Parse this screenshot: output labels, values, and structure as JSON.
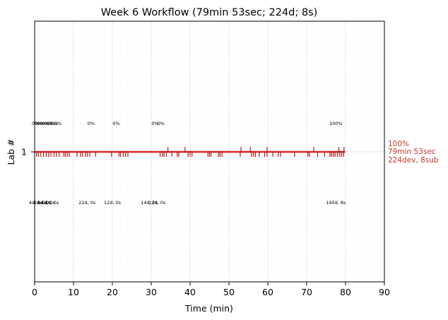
{
  "chart_data": {
    "type": "timeline",
    "title": "Week 6 Workflow (79min 53sec; 224d; 8s)",
    "xlabel": "Time (min)",
    "ylabel": "Lab #",
    "xlim": [
      0,
      90
    ],
    "xticks": [
      0,
      10,
      20,
      30,
      40,
      50,
      60,
      70,
      80,
      90
    ],
    "ytick_label": "1",
    "grid": "vertical dotted at major ticks, faint minor every 2 min",
    "colors": {
      "line": "#d62728",
      "tick": "#b71c1c",
      "label": "#c0392b",
      "grid": "#b0b0b0"
    },
    "lab_line": {
      "lab": 1,
      "start": 0,
      "end": 79.88
    },
    "right_label": [
      "100%",
      "79min 53sec",
      "224dev, 8sub"
    ],
    "percent_labels": [
      {
        "x": 0.2,
        "text": "0%"
      },
      {
        "x": 1.0,
        "text": "0%"
      },
      {
        "x": 1.6,
        "text": "0%"
      },
      {
        "x": 2.2,
        "text": "0%"
      },
      {
        "x": 2.8,
        "text": "0%"
      },
      {
        "x": 3.5,
        "text": "0%"
      },
      {
        "x": 4.2,
        "text": "0%"
      },
      {
        "x": 5.0,
        "text": "0%"
      },
      {
        "x": 6.0,
        "text": "0%"
      },
      {
        "x": 14.5,
        "text": "0%"
      },
      {
        "x": 21.0,
        "text": "0%"
      },
      {
        "x": 31.0,
        "text": "0%"
      },
      {
        "x": 32.5,
        "text": "0%"
      },
      {
        "x": 77.5,
        "text": "100%"
      }
    ],
    "dev_labels": [
      {
        "x": 0.3,
        "text": "4d, 0s"
      },
      {
        "x": 1.5,
        "text": "8d, 0s"
      },
      {
        "x": 2.5,
        "text": "4d, 0s"
      },
      {
        "x": 3.4,
        "text": "4d, 0s"
      },
      {
        "x": 4.4,
        "text": "4d, 0s"
      },
      {
        "x": 13.5,
        "text": "22d, 0s"
      },
      {
        "x": 20.0,
        "text": "12d, 0s"
      },
      {
        "x": 29.5,
        "text": "14d, 0s"
      },
      {
        "x": 31.5,
        "text": "12d, 0s"
      },
      {
        "x": 77.5,
        "text": "140d, 8s"
      }
    ],
    "dev_events_min": [
      0.5,
      1.0,
      1.6,
      2.3,
      3.0,
      3.6,
      4.2,
      5.0,
      5.6,
      6.3,
      7.5,
      7.9,
      8.4,
      8.9,
      10.9,
      11.8,
      12.3,
      13.1,
      13.6,
      14.2,
      15.7,
      19.8,
      21.7,
      22.1,
      22.8,
      23.4,
      24.0,
      32.3,
      32.9,
      33.3,
      33.9,
      35.3,
      36.7,
      37.1,
      39.5,
      40.0,
      40.5,
      44.6,
      45.0,
      45.4,
      47.3,
      47.7,
      48.2,
      52.9,
      55.8,
      56.3,
      56.8,
      57.8,
      59.2,
      59.8,
      61.3,
      62.7,
      63.3,
      66.9,
      70.3,
      70.7,
      72.8,
      74.6,
      76.0,
      76.4,
      76.9,
      77.3,
      77.9,
      78.5,
      79.0,
      79.5
    ],
    "sub_events_min": [
      34.3,
      38.7,
      53.1,
      55.5,
      59.8,
      71.8,
      78.3,
      79.6
    ]
  }
}
